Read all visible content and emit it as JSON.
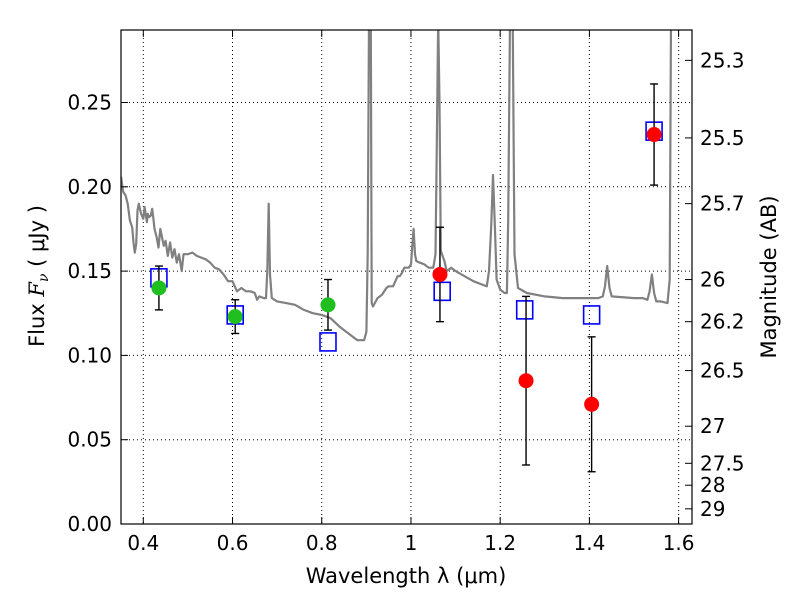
{
  "chart_data": {
    "type": "scatter",
    "title": "",
    "xlabel": "Wavelength  λ (μm)",
    "ylabel": "Flux  F_ν  ( μJy )",
    "ylabel_parts": {
      "pre": "Flux  ",
      "sym": "F",
      "sub": "ν",
      "post": "  ( μJy )"
    },
    "ylabel_right": "Magnitude (AB)",
    "xlim": [
      0.35,
      1.63
    ],
    "ylim": [
      0.0,
      0.293
    ],
    "grid": true,
    "x_ticks": [
      0.4,
      0.6,
      0.8,
      1.0,
      1.2,
      1.4,
      1.6
    ],
    "x_tick_labels": [
      "0.4",
      "0.6",
      "0.8",
      "1",
      "1.2",
      "1.4",
      "1.6"
    ],
    "y_ticks": [
      0.0,
      0.05,
      0.1,
      0.15,
      0.2,
      0.25
    ],
    "y_tick_labels": [
      "0.00",
      "0.05",
      "0.10",
      "0.15",
      "0.20",
      "0.25"
    ],
    "right_ticks": [
      {
        "label": "25.3",
        "flux": 0.275
      },
      {
        "label": "25.5",
        "flux": 0.229
      },
      {
        "label": "25.7",
        "flux": 0.19
      },
      {
        "label": "26",
        "flux": 0.145
      },
      {
        "label": "26.2",
        "flux": 0.12
      },
      {
        "label": "26.5",
        "flux": 0.091
      },
      {
        "label": "27",
        "flux": 0.058
      },
      {
        "label": "27.5",
        "flux": 0.036
      },
      {
        "label": "28",
        "flux": 0.023
      },
      {
        "label": "29",
        "flux": 0.009
      }
    ],
    "model_spectrum": {
      "color": "#808080",
      "points": [
        [
          0.35,
          0.206
        ],
        [
          0.355,
          0.197
        ],
        [
          0.36,
          0.195
        ],
        [
          0.365,
          0.19
        ],
        [
          0.37,
          0.18
        ],
        [
          0.375,
          0.176
        ],
        [
          0.378,
          0.167
        ],
        [
          0.381,
          0.161
        ],
        [
          0.384,
          0.166
        ],
        [
          0.387,
          0.186
        ],
        [
          0.39,
          0.19
        ],
        [
          0.395,
          0.184
        ],
        [
          0.4,
          0.181
        ],
        [
          0.403,
          0.188
        ],
        [
          0.408,
          0.179
        ],
        [
          0.41,
          0.184
        ],
        [
          0.413,
          0.182
        ],
        [
          0.417,
          0.183
        ],
        [
          0.42,
          0.187
        ],
        [
          0.423,
          0.18
        ],
        [
          0.425,
          0.175
        ],
        [
          0.43,
          0.17
        ],
        [
          0.434,
          0.164
        ],
        [
          0.438,
          0.175
        ],
        [
          0.442,
          0.17
        ],
        [
          0.446,
          0.165
        ],
        [
          0.45,
          0.168
        ],
        [
          0.455,
          0.159
        ],
        [
          0.46,
          0.167
        ],
        [
          0.465,
          0.158
        ],
        [
          0.47,
          0.163
        ],
        [
          0.475,
          0.155
        ],
        [
          0.48,
          0.16
        ],
        [
          0.486,
          0.15
        ],
        [
          0.49,
          0.16
        ],
        [
          0.5,
          0.16
        ],
        [
          0.51,
          0.161
        ],
        [
          0.52,
          0.159
        ],
        [
          0.53,
          0.158
        ],
        [
          0.54,
          0.157
        ],
        [
          0.55,
          0.155
        ],
        [
          0.56,
          0.152
        ],
        [
          0.57,
          0.151
        ],
        [
          0.58,
          0.148
        ],
        [
          0.59,
          0.144
        ],
        [
          0.6,
          0.144
        ],
        [
          0.61,
          0.138
        ],
        [
          0.62,
          0.14
        ],
        [
          0.63,
          0.138
        ],
        [
          0.64,
          0.138
        ],
        [
          0.65,
          0.137
        ],
        [
          0.655,
          0.133
        ],
        [
          0.66,
          0.135
        ],
        [
          0.67,
          0.134
        ],
        [
          0.675,
          0.134
        ],
        [
          0.678,
          0.15
        ],
        [
          0.681,
          0.19
        ],
        [
          0.684,
          0.148
        ],
        [
          0.688,
          0.134
        ],
        [
          0.7,
          0.132
        ],
        [
          0.72,
          0.131
        ],
        [
          0.74,
          0.13
        ],
        [
          0.76,
          0.127
        ],
        [
          0.78,
          0.125
        ],
        [
          0.8,
          0.124
        ],
        [
          0.82,
          0.122
        ],
        [
          0.84,
          0.117
        ],
        [
          0.86,
          0.113
        ],
        [
          0.88,
          0.109
        ],
        [
          0.895,
          0.109
        ],
        [
          0.9,
          0.114
        ],
        [
          0.903,
          0.16
        ],
        [
          0.906,
          0.3
        ],
        [
          0.91,
          0.3
        ],
        [
          0.912,
          0.131
        ],
        [
          0.915,
          0.129
        ],
        [
          0.925,
          0.134
        ],
        [
          0.935,
          0.136
        ],
        [
          0.945,
          0.14
        ],
        [
          0.95,
          0.141
        ],
        [
          0.96,
          0.141
        ],
        [
          0.97,
          0.147
        ],
        [
          0.975,
          0.147
        ],
        [
          0.98,
          0.149
        ],
        [
          0.985,
          0.152
        ],
        [
          0.99,
          0.152
        ],
        [
          0.995,
          0.152
        ],
        [
          1.0,
          0.154
        ],
        [
          1.003,
          0.165
        ],
        [
          1.006,
          0.175
        ],
        [
          1.009,
          0.16
        ],
        [
          1.012,
          0.156
        ],
        [
          1.02,
          0.155
        ],
        [
          1.03,
          0.154
        ],
        [
          1.04,
          0.152
        ],
        [
          1.05,
          0.152
        ],
        [
          1.055,
          0.16
        ],
        [
          1.058,
          0.225
        ],
        [
          1.061,
          0.3
        ],
        [
          1.064,
          0.25
        ],
        [
          1.067,
          0.162
        ],
        [
          1.075,
          0.156
        ],
        [
          1.08,
          0.15
        ],
        [
          1.09,
          0.152
        ],
        [
          1.1,
          0.15
        ],
        [
          1.12,
          0.147
        ],
        [
          1.14,
          0.144
        ],
        [
          1.16,
          0.142
        ],
        [
          1.17,
          0.141
        ],
        [
          1.175,
          0.15
        ],
        [
          1.18,
          0.178
        ],
        [
          1.184,
          0.207
        ],
        [
          1.188,
          0.178
        ],
        [
          1.192,
          0.145
        ],
        [
          1.2,
          0.139
        ],
        [
          1.21,
          0.137
        ],
        [
          1.215,
          0.137
        ],
        [
          1.218,
          0.18
        ],
        [
          1.222,
          0.3
        ],
        [
          1.228,
          0.3
        ],
        [
          1.232,
          0.16
        ],
        [
          1.24,
          0.14
        ],
        [
          1.26,
          0.137
        ],
        [
          1.3,
          0.135
        ],
        [
          1.34,
          0.134
        ],
        [
          1.38,
          0.134
        ],
        [
          1.4,
          0.134
        ],
        [
          1.42,
          0.134
        ],
        [
          1.43,
          0.135
        ],
        [
          1.435,
          0.141
        ],
        [
          1.44,
          0.153
        ],
        [
          1.445,
          0.14
        ],
        [
          1.45,
          0.135
        ],
        [
          1.5,
          0.134
        ],
        [
          1.52,
          0.134
        ],
        [
          1.53,
          0.133
        ],
        [
          1.535,
          0.138
        ],
        [
          1.54,
          0.148
        ],
        [
          1.545,
          0.137
        ],
        [
          1.55,
          0.132
        ],
        [
          1.56,
          0.132
        ],
        [
          1.575,
          0.131
        ],
        [
          1.58,
          0.145
        ],
        [
          1.583,
          0.3
        ]
      ]
    },
    "model_photometry": {
      "marker": "open-square",
      "color": "#0000ff",
      "points": [
        [
          0.435,
          0.146
        ],
        [
          0.606,
          0.124
        ],
        [
          0.814,
          0.108
        ],
        [
          1.07,
          0.138
        ],
        [
          1.255,
          0.127
        ],
        [
          1.405,
          0.124
        ],
        [
          1.545,
          0.233
        ]
      ]
    },
    "detections": {
      "marker": "filled-circle",
      "color": "#1fbf1f",
      "points": [
        {
          "x": 0.435,
          "y": 0.14,
          "err": 0.013
        },
        {
          "x": 0.606,
          "y": 0.123,
          "err": 0.01
        },
        {
          "x": 0.814,
          "y": 0.13,
          "err": 0.015
        }
      ]
    },
    "measurements": {
      "marker": "filled-circle",
      "color": "#ff0000",
      "points": [
        {
          "x": 1.065,
          "y": 0.148,
          "err": 0.028
        },
        {
          "x": 1.258,
          "y": 0.085,
          "err": 0.05
        },
        {
          "x": 1.405,
          "y": 0.071,
          "err": 0.04
        },
        {
          "x": 1.545,
          "y": 0.231,
          "err": 0.03
        }
      ]
    }
  }
}
